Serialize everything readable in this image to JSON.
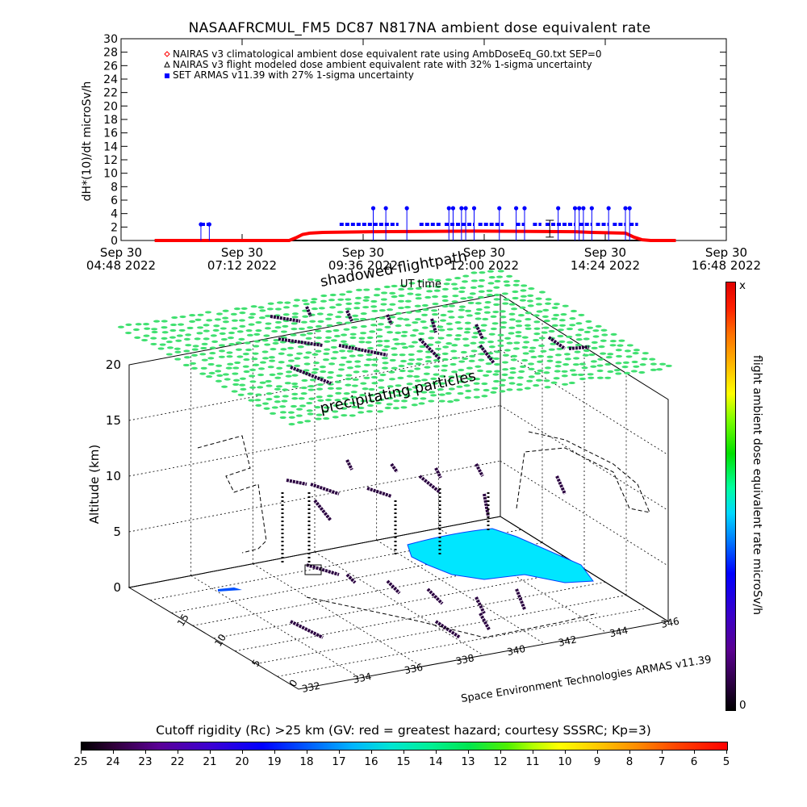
{
  "top_title": "NASAAFRCMUL_FM5 DC87 N817NA ambient dose equivalent rate",
  "colorbar_vert_label": "flight ambient dose equivalent rate microSv/h",
  "colorbar_vert_top": "x",
  "colorbar_vert_bottom": "0",
  "colorbar_horz_title": "Cutoff rigidity (Rc) >25 km (GV: red = greatest hazard; courtesy SSSRC; Kp=3)",
  "colorbar_horz_ticks": [
    "25",
    "24",
    "23",
    "22",
    "21",
    "20",
    "19",
    "18",
    "17",
    "16",
    "15",
    "14",
    "13",
    "12",
    "11",
    "10",
    "9",
    "8",
    "7",
    "6",
    "5"
  ],
  "scene3d": {
    "zlabel": "Altitude (km)",
    "z_ticks": [
      "0",
      "5",
      "10",
      "15",
      "20"
    ],
    "x_ticks": [
      "332",
      "334",
      "336",
      "338",
      "340",
      "342",
      "344",
      "346"
    ],
    "y_ticks": [
      "0",
      "5",
      "10",
      "15"
    ],
    "label_shadowed": "shadowed flightpath",
    "label_precip": "precipitating particles",
    "label_ut": "UT time",
    "credit": "Space Environment Technologies ARMAS v11.39"
  },
  "chart_data": [
    {
      "type": "scatter",
      "title": "NASAAFRCMUL_FM5 DC87 N817NA ambient dose equivalent rate",
      "ylabel": "dH*(10)/dt microSv/h",
      "ylim": [
        0,
        30
      ],
      "y_ticks": [
        "0",
        "2",
        "4",
        "6",
        "8",
        "10",
        "12",
        "14",
        "16",
        "18",
        "20",
        "22",
        "24",
        "26",
        "28",
        "30"
      ],
      "x_ticks": [
        {
          "line1": "Sep 30",
          "line2": "04:48 2022",
          "t": 0
        },
        {
          "line1": "Sep 30",
          "line2": "07:12 2022",
          "t": 144
        },
        {
          "line1": "Sep 30",
          "line2": "09:36 2022",
          "t": 288
        },
        {
          "line1": "Sep 30",
          "line2": "12:00 2022",
          "t": 432
        },
        {
          "line1": "Sep 30",
          "line2": "14:24 2022",
          "t": 576
        },
        {
          "line1": "Sep 30",
          "line2": "16:48 2022",
          "t": 720
        }
      ],
      "legend": [
        {
          "marker": "diamond",
          "color": "#ff0000",
          "text": "NAIRAS v3 climatological ambient dose equivalent rate using AmbDoseEq_G0.txt SEP=0"
        },
        {
          "marker": "triangle",
          "color": "#000000",
          "text": "NAIRAS v3 flight modeled dose ambient equivalent rate with 32% 1-sigma uncertainty"
        },
        {
          "marker": "square",
          "color": "#0000ff",
          "text": "SET ARMAS v11.39 with 27% 1-sigma uncertainty"
        }
      ],
      "series": [
        {
          "name": "NAIRAS v3 climatological ambient dose equivalent rate using AmbDoseEq_G0.txt SEP=0",
          "color": "#ff0000",
          "points": [
            [
              40,
              0
            ],
            [
              200,
              0
            ],
            [
              208,
              0.4
            ],
            [
              216,
              0.9
            ],
            [
              225,
              1.1
            ],
            [
              240,
              1.2
            ],
            [
              300,
              1.3
            ],
            [
              420,
              1.4
            ],
            [
              540,
              1.3
            ],
            [
              560,
              1.2
            ],
            [
              600,
              1.1
            ],
            [
              610,
              0.5
            ],
            [
              620,
              0.1
            ],
            [
              630,
              0
            ],
            [
              660,
              0
            ]
          ]
        },
        {
          "name": "NAIRAS v3 flight modeled dose ambient equivalent rate with 32% 1-sigma uncertainty",
          "color": "#000000",
          "points": [
            [
              40,
              0
            ],
            [
              660,
              0
            ]
          ]
        },
        {
          "name": "SET ARMAS v11.39 with 27% 1-sigma uncertainty",
          "color": "#0000ff",
          "segments": [
            [
              95,
              105,
              2.4
            ],
            [
              260,
              330,
              2.4
            ],
            [
              355,
              380,
              2.4
            ],
            [
              385,
              420,
              2.4
            ],
            [
              425,
              455,
              2.4
            ],
            [
              470,
              480,
              2.4
            ],
            [
              490,
              500,
              2.4
            ],
            [
              505,
              540,
              2.4
            ],
            [
              545,
              560,
              2.4
            ],
            [
              565,
              580,
              2.4
            ],
            [
              585,
              600,
              2.4
            ],
            [
              605,
              615,
              2.4
            ]
          ],
          "spikes": [
            [
              95,
              2.4
            ],
            [
              105,
              2.4
            ],
            [
              300,
              4.8
            ],
            [
              315,
              4.8
            ],
            [
              340,
              4.8
            ],
            [
              390,
              4.8
            ],
            [
              395,
              4.8
            ],
            [
              405,
              4.8
            ],
            [
              410,
              4.8
            ],
            [
              420,
              4.8
            ],
            [
              450,
              4.8
            ],
            [
              470,
              4.8
            ],
            [
              480,
              4.8
            ],
            [
              520,
              4.8
            ],
            [
              540,
              4.8
            ],
            [
              545,
              4.8
            ],
            [
              550,
              4.8
            ],
            [
              560,
              4.8
            ],
            [
              580,
              4.8
            ],
            [
              600,
              4.8
            ],
            [
              605,
              4.8
            ]
          ]
        }
      ]
    }
  ]
}
